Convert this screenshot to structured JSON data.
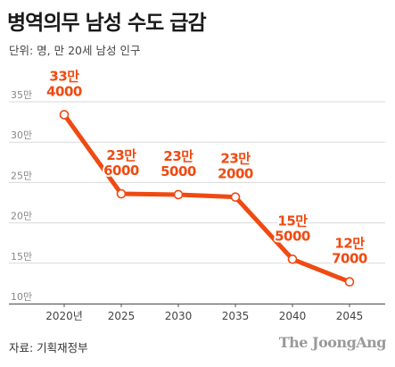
{
  "title": "병역의무 남성 수도 급감",
  "unit": "단위: 명, 만 20세 남성 인구",
  "source": "자료: 기획재정부",
  "brand": "The JoongAng",
  "chart_data": {
    "type": "line",
    "categories": [
      "2020년",
      "2025",
      "2030",
      "2035",
      "2040",
      "2045"
    ],
    "series": [
      {
        "values": [
          334000,
          236000,
          235000,
          232000,
          155000,
          127000
        ]
      }
    ],
    "data_labels": [
      [
        "33만",
        "4000"
      ],
      [
        "23만",
        "6000"
      ],
      [
        "23만",
        "5000"
      ],
      [
        "23만",
        "2000"
      ],
      [
        "15만",
        "5000"
      ],
      [
        "12만",
        "7000"
      ]
    ],
    "y_ticks": [
      {
        "value": 100000,
        "label": "10만"
      },
      {
        "value": 150000,
        "label": "15만"
      },
      {
        "value": 200000,
        "label": "20만"
      },
      {
        "value": 250000,
        "label": "25만"
      },
      {
        "value": 300000,
        "label": "30만"
      },
      {
        "value": 350000,
        "label": "35만"
      }
    ],
    "ylim": [
      100000,
      350000
    ],
    "grid": true,
    "line_color": "#f04a12",
    "grid_color": "#d9d9d9"
  }
}
